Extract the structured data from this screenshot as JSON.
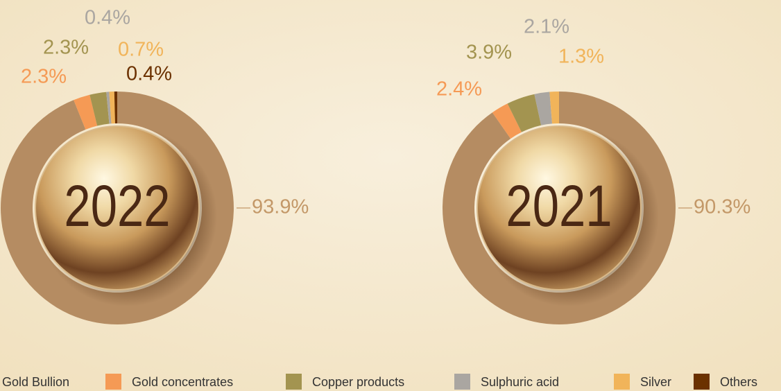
{
  "chart_data": [
    {
      "type": "pie",
      "title": "2022",
      "categories": [
        "Gold Bullion",
        "Gold concentrates",
        "Copper products",
        "Sulphuric acid",
        "Silver",
        "Others"
      ],
      "values": [
        93.9,
        2.3,
        2.3,
        0.4,
        0.7,
        0.4
      ],
      "value_labels": [
        "93.9%",
        "2.3%",
        "2.3%",
        "0.4%",
        "0.7%",
        "0.4%"
      ],
      "colors": [
        "#b58c62",
        "#f59a55",
        "#a39450",
        "#aaa6a1",
        "#f1b45a",
        "#6b3100"
      ]
    },
    {
      "type": "pie",
      "title": "2021",
      "categories": [
        "Gold Bullion",
        "Gold concentrates",
        "Copper products",
        "Sulphuric acid",
        "Silver"
      ],
      "values": [
        90.3,
        2.4,
        3.9,
        2.1,
        1.3
      ],
      "value_labels": [
        "90.3%",
        "2.4%",
        "3.9%",
        "2.1%",
        "1.3%"
      ],
      "colors": [
        "#b58c62",
        "#f59a55",
        "#a39450",
        "#aaa6a1",
        "#f1b45a"
      ]
    }
  ]
}
